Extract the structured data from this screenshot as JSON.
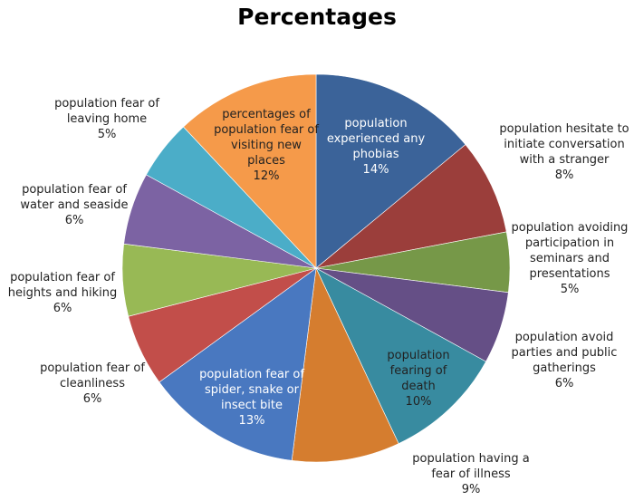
{
  "chart_data": {
    "type": "pie",
    "title": "Percentages",
    "slices": [
      {
        "label": "population experienced any phobias",
        "value": 14,
        "value_label": "14%",
        "color": "#3b6399"
      },
      {
        "label": "population hesitate to initiate conversation with a stranger",
        "value": 8,
        "value_label": "8%",
        "color": "#9b3e3b"
      },
      {
        "label": "population avoiding participation in seminars and presentations",
        "value": 5,
        "value_label": "5%",
        "color": "#769848"
      },
      {
        "label": "population avoid parties and public gatherings",
        "value": 6,
        "value_label": "6%",
        "color": "#654f86"
      },
      {
        "label": "population fearing of death",
        "value": 10,
        "value_label": "10%",
        "color": "#388ba0"
      },
      {
        "label": "population having a fear of illness",
        "value": 9,
        "value_label": "9%",
        "color": "#d57d2f"
      },
      {
        "label": "population fear of spider, snake or insect bite",
        "value": 13,
        "value_label": "13%",
        "color": "#4978c0"
      },
      {
        "label": "population fear of cleanliness",
        "value": 6,
        "value_label": "6%",
        "color": "#c24e4a"
      },
      {
        "label": "population fear of heights and hiking",
        "value": 6,
        "value_label": "6%",
        "color": "#98b955"
      },
      {
        "label": "population fear of water and seaside",
        "value": 6,
        "value_label": "6%",
        "color": "#7c63a3"
      },
      {
        "label": "population fear of leaving home",
        "value": 5,
        "value_label": "5%",
        "color": "#4badc8"
      },
      {
        "label": "percentages of population fear of visiting new places",
        "value": 12,
        "value_label": "12%",
        "color": "#f59a4a"
      }
    ]
  }
}
